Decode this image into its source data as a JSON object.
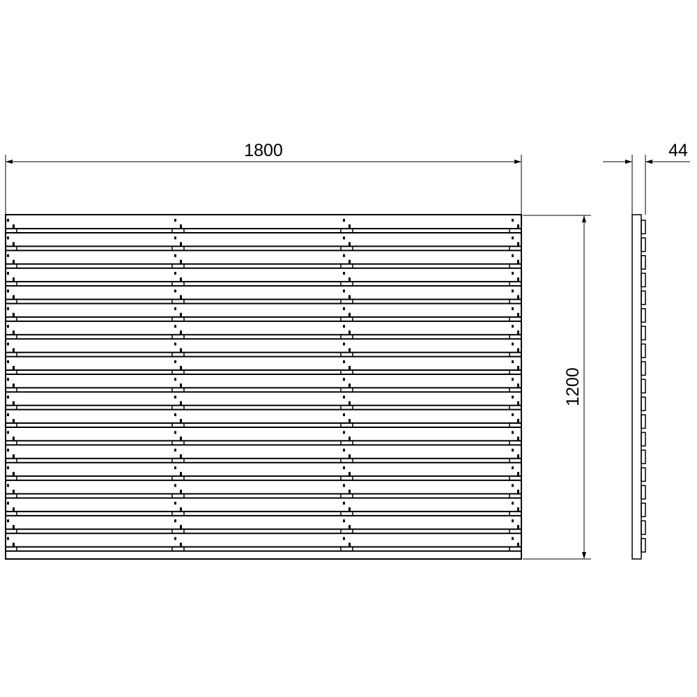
{
  "drawing": {
    "width_label": "1800",
    "height_label": "1200",
    "depth_label": "44",
    "slat_count": 19,
    "line_color": "#000000",
    "background": "#ffffff"
  }
}
